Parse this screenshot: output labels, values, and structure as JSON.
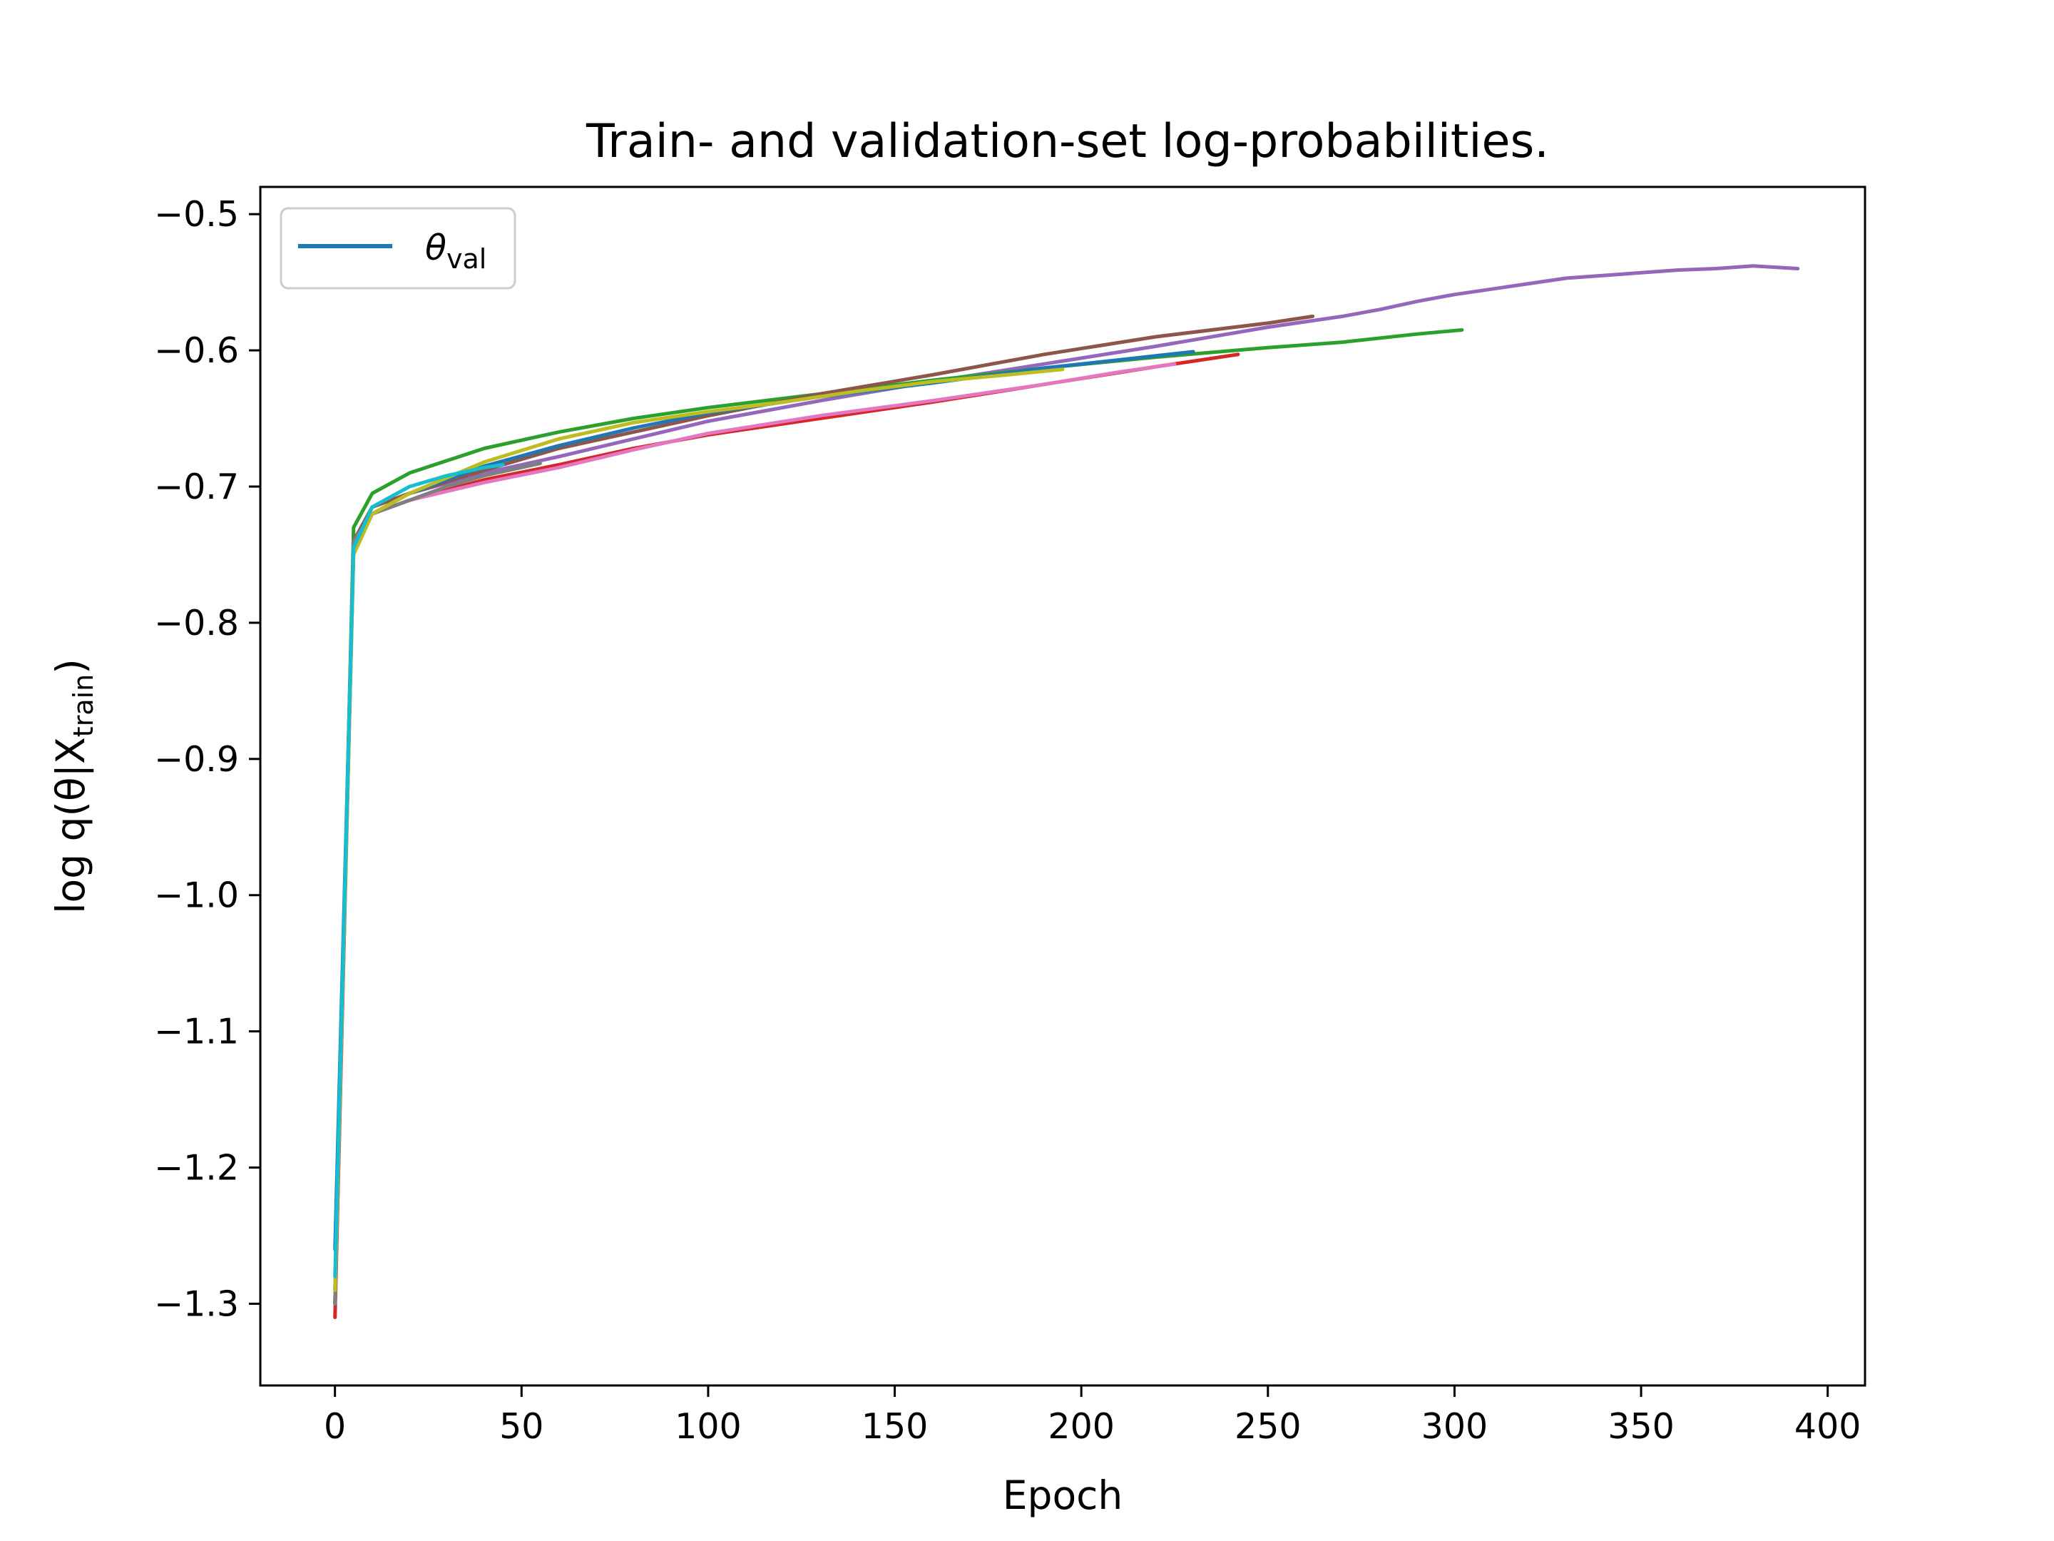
{
  "chart_data": {
    "type": "line",
    "title": "Train- and validation-set log-probabilities.",
    "xlabel": "Epoch",
    "ylabel_main": "log q(θ|X",
    "ylabel_sub": "train",
    "ylabel_close": ")",
    "xlim": [
      -20,
      410
    ],
    "ylim": [
      -1.36,
      -0.48
    ],
    "xticks": [
      0,
      50,
      100,
      150,
      200,
      250,
      300,
      350,
      400
    ],
    "xtick_labels": [
      "0",
      "50",
      "100",
      "150",
      "200",
      "250",
      "300",
      "350",
      "400"
    ],
    "yticks": [
      -0.5,
      -0.6,
      -0.7,
      -0.8,
      -0.9,
      -1.0,
      -1.1,
      -1.2,
      -1.3
    ],
    "ytick_labels": [
      "−0.5",
      "−0.6",
      "−0.7",
      "−0.8",
      "−0.9",
      "−1.0",
      "−1.1",
      "−1.2",
      "−1.3"
    ],
    "grid": false,
    "legend": {
      "placement": "upper-left",
      "symbol": "θ",
      "subscript": "val",
      "color": "#1f77b4"
    },
    "series": [
      {
        "color": "#9467bd",
        "x": [
          0,
          5,
          10,
          20,
          40,
          60,
          80,
          100,
          130,
          160,
          190,
          220,
          250,
          270,
          280,
          290,
          300,
          310,
          320,
          330,
          340,
          350,
          360,
          370,
          380,
          392
        ],
        "y": [
          -1.29,
          -0.74,
          -0.715,
          -0.705,
          -0.69,
          -0.678,
          -0.665,
          -0.652,
          -0.637,
          -0.623,
          -0.61,
          -0.597,
          -0.583,
          -0.575,
          -0.57,
          -0.564,
          -0.559,
          -0.555,
          -0.551,
          -0.547,
          -0.545,
          -0.543,
          -0.541,
          -0.54,
          -0.538,
          -0.54
        ]
      },
      {
        "color": "#2ca02c",
        "x": [
          0,
          5,
          10,
          20,
          40,
          60,
          80,
          100,
          130,
          160,
          190,
          220,
          250,
          270,
          290,
          302
        ],
        "y": [
          -1.3,
          -0.73,
          -0.705,
          -0.69,
          -0.672,
          -0.66,
          -0.65,
          -0.642,
          -0.632,
          -0.622,
          -0.613,
          -0.605,
          -0.598,
          -0.594,
          -0.588,
          -0.585
        ]
      },
      {
        "color": "#8c564b",
        "x": [
          0,
          5,
          10,
          20,
          40,
          60,
          80,
          100,
          130,
          160,
          190,
          220,
          250,
          262
        ],
        "y": [
          -1.3,
          -0.74,
          -0.715,
          -0.705,
          -0.688,
          -0.672,
          -0.66,
          -0.648,
          -0.632,
          -0.618,
          -0.603,
          -0.59,
          -0.58,
          -0.575
        ]
      },
      {
        "color": "#d62728",
        "x": [
          0,
          5,
          10,
          20,
          40,
          60,
          80,
          100,
          130,
          160,
          190,
          220,
          242
        ],
        "y": [
          -1.31,
          -0.745,
          -0.72,
          -0.71,
          -0.695,
          -0.684,
          -0.672,
          -0.662,
          -0.65,
          -0.638,
          -0.625,
          -0.612,
          -0.603
        ]
      },
      {
        "color": "#1f77b4",
        "x": [
          0,
          5,
          10,
          20,
          40,
          60,
          80,
          100,
          130,
          160,
          190,
          210,
          230
        ],
        "y": [
          -1.26,
          -0.745,
          -0.72,
          -0.705,
          -0.685,
          -0.67,
          -0.657,
          -0.646,
          -0.634,
          -0.624,
          -0.613,
          -0.607,
          -0.601
        ]
      },
      {
        "color": "#e377c2",
        "x": [
          0,
          5,
          10,
          20,
          40,
          60,
          80,
          100,
          130,
          160,
          190,
          210,
          225
        ],
        "y": [
          -1.3,
          -0.745,
          -0.72,
          -0.71,
          -0.697,
          -0.686,
          -0.673,
          -0.661,
          -0.648,
          -0.637,
          -0.625,
          -0.616,
          -0.61
        ]
      },
      {
        "color": "#7f7f7f",
        "x": [
          0,
          5,
          10,
          20,
          30,
          40,
          55
        ],
        "y": [
          -1.3,
          -0.74,
          -0.72,
          -0.71,
          -0.7,
          -0.692,
          -0.683
        ]
      },
      {
        "color": "#bcbd22",
        "x": [
          0,
          5,
          10,
          20,
          40,
          60,
          80,
          100,
          120,
          140,
          160,
          180,
          195
        ],
        "y": [
          -1.29,
          -0.75,
          -0.72,
          -0.705,
          -0.682,
          -0.665,
          -0.653,
          -0.645,
          -0.638,
          -0.63,
          -0.623,
          -0.618,
          -0.614
        ]
      },
      {
        "color": "#17becf",
        "x": [
          0,
          5,
          10,
          20,
          30,
          40,
          45
        ],
        "y": [
          -1.28,
          -0.745,
          -0.715,
          -0.7,
          -0.692,
          -0.686,
          -0.684
        ]
      }
    ]
  }
}
